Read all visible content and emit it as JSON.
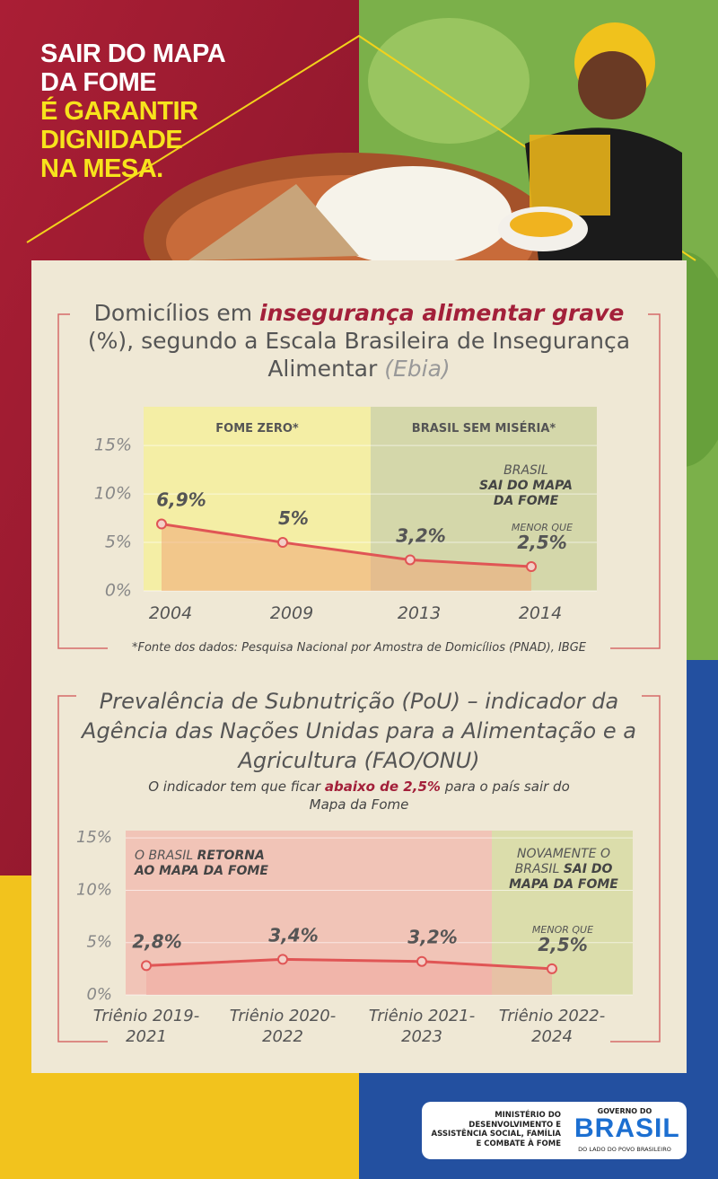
{
  "header": {
    "title_lines": [
      "SAIR DO MAPA",
      "DA FOME"
    ],
    "highlight_lines": [
      "É GARANTIR",
      "DIGNIDADE",
      "NA MESA."
    ]
  },
  "chart_data": [
    {
      "type": "line",
      "title_parts": [
        "Domicílios em",
        "insegurança alimentar grave",
        "(%),",
        "segundo a Escala Brasileira de Insegurança Alimentar",
        "(Ebia)"
      ],
      "categories": [
        "2004",
        "2009",
        "2013",
        "2014"
      ],
      "values": [
        6.9,
        5,
        3.2,
        2.5
      ],
      "value_labels": [
        "6,9%",
        "5%",
        "3,2%",
        "2,5%"
      ],
      "color": "#e05555",
      "area_color": "#f0a877",
      "ylim": [
        0,
        19
      ],
      "yticks": [
        {
          "value": 0,
          "label": "0%"
        },
        {
          "value": 5,
          "label": "5%"
        },
        {
          "value": 10,
          "label": "10%"
        },
        {
          "value": 15,
          "label": "15%"
        }
      ],
      "grid": true,
      "regions": [
        {
          "label": "FOME ZERO*",
          "color": "#f4ee9c"
        },
        {
          "label": "BRASIL SEM MISÉRIA*",
          "color": "#cfd3a2"
        }
      ],
      "annotation": [
        "BRASIL",
        "SAI DO MAPA DA FOME"
      ],
      "note": "MENOR QUE",
      "source": "*Fonte dos dados: Pesquisa Nacional por Amostra de Domicílios (PNAD), IBGE"
    },
    {
      "type": "line",
      "title": "Prevalência de Subnutrição (PoU) – indicador da Agência das Nações Unidas para a Alimentação e a Agricultura (FAO/ONU)",
      "subtitle_parts": [
        "O indicador tem que ficar",
        "abaixo de 2,5%",
        "para o país sair do Mapa da Fome"
      ],
      "categories": [
        "Triênio 2019-2021",
        "Triênio 2020-2022",
        "Triênio 2021-2023",
        "Triênio 2022-2024"
      ],
      "values": [
        2.8,
        3.4,
        3.2,
        2.5
      ],
      "value_labels": [
        "2,8%",
        "3,4%",
        "3,2%",
        "2,5%"
      ],
      "color": "#e05555",
      "area_color": "#f0a9a0",
      "ylim": [
        0,
        15.7
      ],
      "yticks": [
        {
          "value": 0,
          "label": "0%"
        },
        {
          "value": 5,
          "label": "5%"
        },
        {
          "value": 10,
          "label": "10%"
        },
        {
          "value": 15,
          "label": "15%"
        }
      ],
      "grid": true,
      "regions": [
        {
          "label": [
            "O BRASIL",
            "RETORNA AO MAPA DA FOME"
          ],
          "color": "#f1bdb2"
        },
        {
          "label": [
            "NOVAMENTE O BRASIL",
            "SAI DO MAPA DA FOME"
          ],
          "color": "#d7dba3"
        }
      ],
      "note": "MENOR QUE"
    }
  ],
  "footer": {
    "ministry": "MINISTÉRIO DO DESENVOLVIMENTO E ASSISTÊNCIA SOCIAL, FAMÍLIA E COMBATE À FOME",
    "gov_top": "GOVERNO DO",
    "gov_name": "BRASIL",
    "gov_slogan": "DO LADO DO POVO BRASILEIRO"
  }
}
